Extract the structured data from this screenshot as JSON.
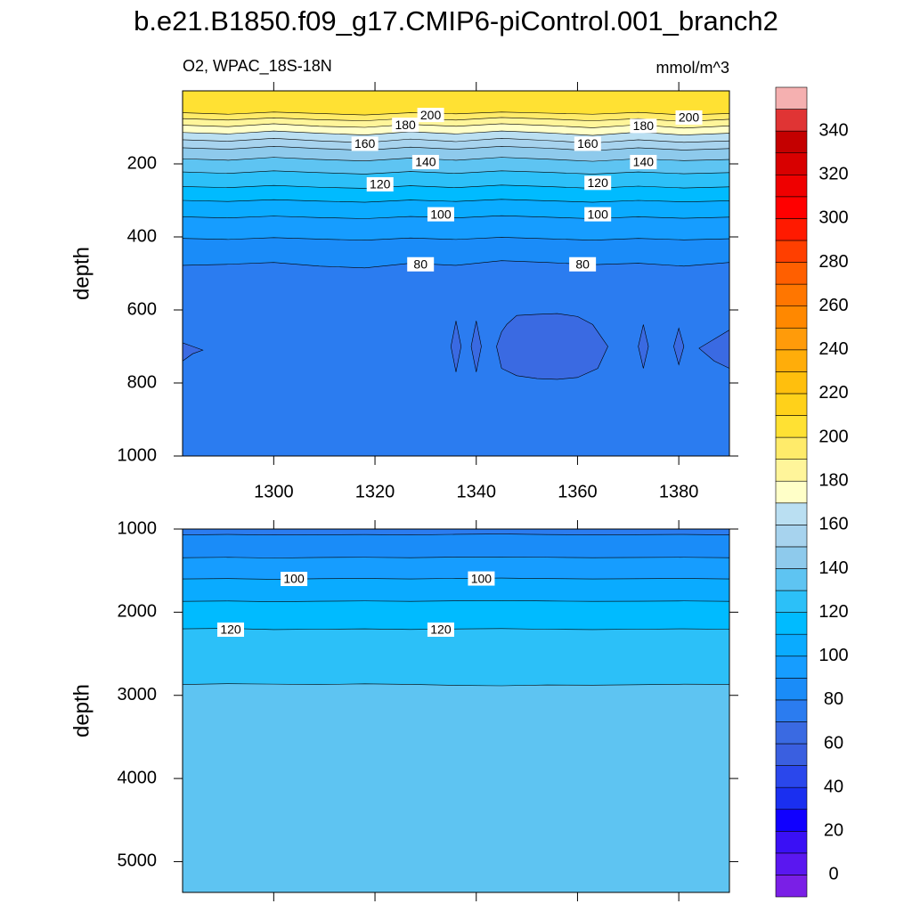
{
  "chart_data": {
    "type": "contour",
    "title": "b.e21.B1850.f09_g17.CMIP6-piControl.001_branch2",
    "subtitle_left": "O2, WPAC_18S-18N",
    "subtitle_right": "mmol/m^3",
    "xlim": [
      1282,
      1390
    ],
    "xticks": [
      1300,
      1320,
      1340,
      1360,
      1380
    ],
    "x": [
      1282,
      1291,
      1300,
      1309,
      1318,
      1327,
      1336,
      1345,
      1354,
      1363,
      1372,
      1381,
      1390
    ],
    "colorbar": {
      "levels": [
        0,
        10,
        20,
        30,
        40,
        50,
        60,
        70,
        80,
        90,
        100,
        110,
        120,
        130,
        140,
        150,
        160,
        170,
        180,
        190,
        200,
        210,
        220,
        230,
        240,
        250,
        260,
        270,
        280,
        290,
        300,
        310,
        320,
        330,
        340,
        350
      ],
      "colors": [
        "#7a1fe6",
        "#5a17f0",
        "#3a10f5",
        "#1000ff",
        "#1a2ff0",
        "#2a47ec",
        "#3a5fe0",
        "#3a6ae2",
        "#2b7cf0",
        "#1a8cf8",
        "#169dff",
        "#0aabff",
        "#00bbff",
        "#2cc0f8",
        "#5ec4f2",
        "#8ecaec",
        "#a7d3ee",
        "#badff2",
        "#ffffc8",
        "#fff59a",
        "#ffeb6a",
        "#ffe133",
        "#ffd11a",
        "#ffbf0d",
        "#ffad0a",
        "#ff9b0a",
        "#ff8800",
        "#ff7600",
        "#ff5f00",
        "#ff3f00",
        "#ff1a00",
        "#ff0000",
        "#ef0000",
        "#d80000",
        "#c40000",
        "#e03434",
        "#f5b0b0"
      ],
      "ticks": [
        0,
        20,
        40,
        60,
        80,
        100,
        120,
        140,
        160,
        180,
        200,
        220,
        240,
        260,
        280,
        300,
        320,
        340
      ]
    },
    "panels": [
      {
        "ylabel": "depth",
        "ylim": [
          0,
          1000
        ],
        "yticks": [
          200,
          400,
          600,
          800,
          1000
        ],
        "xtick_labels": true,
        "contours": [
          {
            "level": 200,
            "depth": [
              60,
              64,
              58,
              62,
              66,
              60,
              63,
              58,
              61,
              64,
              59,
              66,
              62
            ]
          },
          {
            "level": 190,
            "depth": [
              76,
              80,
              74,
              79,
              82,
              75,
              80,
              73,
              77,
              82,
              76,
              84,
              78
            ]
          },
          {
            "level": 180,
            "depth": [
              94,
              98,
              90,
              97,
              100,
              92,
              97,
              90,
              95,
              101,
              93,
              102,
              96
            ]
          },
          {
            "level": 170,
            "depth": [
              114,
              118,
              110,
              116,
              121,
              112,
              118,
              110,
              115,
              122,
              113,
              121,
              116
            ]
          },
          {
            "level": 160,
            "depth": [
              134,
              138,
              130,
              137,
              142,
              132,
              139,
              130,
              136,
              143,
              134,
              141,
              137
            ]
          },
          {
            "level": 150,
            "depth": [
              156,
              160,
              152,
              158,
              163,
              154,
              160,
              152,
              157,
              164,
              156,
              162,
              158
            ]
          },
          {
            "level": 140,
            "depth": [
              186,
              190,
              182,
              188,
              192,
              184,
              190,
              182,
              187,
              193,
              186,
              191,
              188
            ]
          },
          {
            "level": 130,
            "depth": [
              222,
              226,
              219,
              224,
              228,
              221,
              226,
              219,
              223,
              228,
              222,
              227,
              224
            ]
          },
          {
            "level": 120,
            "depth": [
              262,
              265,
              259,
              264,
              267,
              260,
              265,
              258,
              262,
              267,
              261,
              266,
              263
            ]
          },
          {
            "level": 110,
            "depth": [
              300,
              303,
              298,
              302,
              305,
              299,
              303,
              297,
              301,
              305,
              300,
              304,
              301
            ]
          },
          {
            "level": 100,
            "depth": [
              345,
              348,
              343,
              347,
              350,
              344,
              348,
              342,
              346,
              350,
              345,
              349,
              346
            ]
          },
          {
            "level": 90,
            "depth": [
              404,
              407,
              402,
              406,
              409,
              403,
              407,
              401,
              405,
              409,
              404,
              408,
              405
            ]
          },
          {
            "level": 80,
            "depth": [
              478,
              475,
              470,
              480,
              485,
              472,
              478,
              465,
              470,
              476,
              472,
              480,
              470
            ]
          }
        ],
        "regions": [
          {
            "level": 70,
            "x": [
              1346,
              1348,
              1352,
              1356,
              1360,
              1363,
              1366,
              1364,
              1360,
              1356,
              1352,
              1348,
              1345,
              1344,
              1345
            ],
            "depth": [
              640,
              615,
              612,
              610,
              618,
              640,
              700,
              760,
              785,
              790,
              788,
              780,
              760,
              700,
              660
            ]
          },
          {
            "level": 70,
            "x": [
              1282,
              1284,
              1286,
              1284,
              1282
            ],
            "depth": [
              690,
              700,
              710,
              720,
              740
            ]
          },
          {
            "level": 70,
            "x": [
              1390,
              1387,
              1384,
              1387,
              1390
            ],
            "depth": [
              655,
              680,
              705,
              740,
              760
            ]
          },
          {
            "level": 70,
            "x": [
              1335,
              1336,
              1337,
              1336
            ],
            "depth": [
              700,
              630,
              700,
              770
            ]
          },
          {
            "level": 70,
            "x": [
              1339,
              1340,
              1341,
              1340
            ],
            "depth": [
              700,
              630,
              700,
              770
            ]
          },
          {
            "level": 70,
            "x": [
              1372,
              1373,
              1374,
              1373
            ],
            "depth": [
              700,
              640,
              700,
              760
            ]
          },
          {
            "level": 70,
            "x": [
              1379,
              1380,
              1381,
              1380
            ],
            "depth": [
              700,
              650,
              700,
              750
            ]
          }
        ],
        "labels": [
          {
            "x": 1331,
            "depth": 66,
            "level": 200
          },
          {
            "x": 1382,
            "depth": 73,
            "level": 200
          },
          {
            "x": 1326,
            "depth": 93,
            "level": 180
          },
          {
            "x": 1373,
            "depth": 96,
            "level": 180
          },
          {
            "x": 1318,
            "depth": 145,
            "level": 160
          },
          {
            "x": 1362,
            "depth": 145,
            "level": 160
          },
          {
            "x": 1330,
            "depth": 195,
            "level": 140
          },
          {
            "x": 1373,
            "depth": 195,
            "level": 140
          },
          {
            "x": 1321,
            "depth": 256,
            "level": 120
          },
          {
            "x": 1364,
            "depth": 252,
            "level": 120
          },
          {
            "x": 1333,
            "depth": 338,
            "level": 100
          },
          {
            "x": 1364,
            "depth": 338,
            "level": 100
          },
          {
            "x": 1329,
            "depth": 475,
            "level": 80
          },
          {
            "x": 1361,
            "depth": 475,
            "level": 80
          }
        ]
      },
      {
        "ylabel": "depth",
        "ylim": [
          1000,
          5370
        ],
        "yticks": [
          1000,
          2000,
          3000,
          4000,
          5000
        ],
        "xtick_labels": false,
        "contours": [
          {
            "level": 80,
            "depth": [
              1070,
              1065,
              1072,
              1068,
              1066,
              1070,
              1064,
              1060,
              1066,
              1070,
              1068,
              1065,
              1070
            ]
          },
          {
            "level": 90,
            "depth": [
              1345,
              1340,
              1348,
              1342,
              1340,
              1345,
              1338,
              1335,
              1340,
              1345,
              1342,
              1340,
              1345
            ]
          },
          {
            "level": 100,
            "depth": [
              1600,
              1596,
              1604,
              1598,
              1595,
              1600,
              1594,
              1590,
              1596,
              1600,
              1598,
              1595,
              1600
            ]
          },
          {
            "level": 110,
            "depth": [
              1870,
              1866,
              1874,
              1868,
              1865,
              1870,
              1864,
              1860,
              1866,
              1870,
              1868,
              1865,
              1870
            ]
          },
          {
            "level": 120,
            "depth": [
              2200,
              2195,
              2210,
              2205,
              2200,
              2208,
              2202,
              2198,
              2205,
              2210,
              2205,
              2200,
              2205
            ]
          },
          {
            "level": 130,
            "depth": [
              2870,
              2860,
              2865,
              2870,
              2862,
              2868,
              2880,
              2885,
              2875,
              2878,
              2872,
              2866,
              2868
            ]
          }
        ],
        "regions": [],
        "labels": [
          {
            "x": 1304,
            "depth": 1600,
            "level": 100
          },
          {
            "x": 1341,
            "depth": 1595,
            "level": 100
          },
          {
            "x": 1291.5,
            "depth": 2210,
            "level": 120
          },
          {
            "x": 1333,
            "depth": 2210,
            "level": 120
          }
        ]
      }
    ]
  }
}
